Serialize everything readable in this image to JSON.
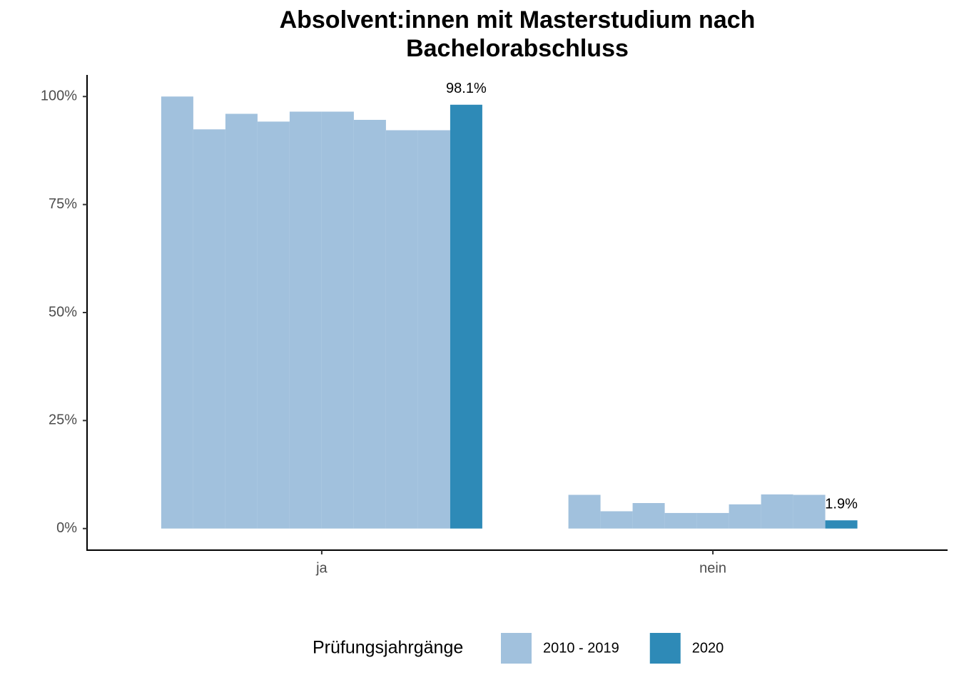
{
  "chart_data": {
    "type": "bar",
    "title": [
      "Absolvent:innen mit Masterstudium nach",
      "Bachelorabschluss"
    ],
    "categories": [
      "ja",
      "nein"
    ],
    "series": [
      {
        "name": "2010 - 2019",
        "color": "#a1c1dd",
        "values": [
          [
            100,
            92.4,
            96,
            94.2,
            96.5,
            96.5,
            94.6,
            92.2,
            92.2
          ],
          [
            7.8,
            4,
            5.9,
            3.6,
            3.6,
            5.6,
            7.9,
            7.8
          ]
        ]
      },
      {
        "name": "2020",
        "color": "#2e8ab7",
        "values": [
          98.1,
          1.9
        ],
        "value_labels": [
          "98.1%",
          "1.9%"
        ]
      }
    ],
    "ylim": [
      -5,
      105
    ],
    "yticks": [
      {
        "value": 0,
        "label": "0%"
      },
      {
        "value": 25,
        "label": "25%"
      },
      {
        "value": 50,
        "label": "50%"
      },
      {
        "value": 75,
        "label": "75%"
      },
      {
        "value": 100,
        "label": "100%"
      }
    ],
    "legend_title": "Prüfungsjahrgänge",
    "legend": "bottom",
    "grid": false
  }
}
